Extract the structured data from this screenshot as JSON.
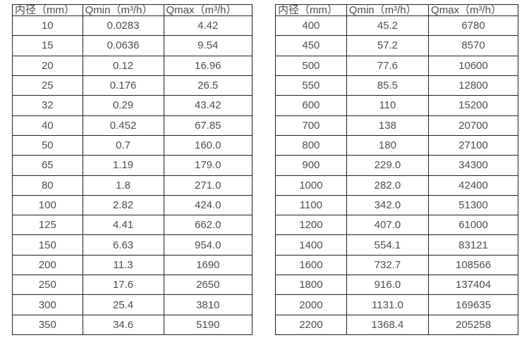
{
  "page": {
    "background_color": "#ffffff",
    "border_color": "#1f1f1f",
    "text_color": "#4d4d4d"
  },
  "columns": [
    "内径（mm）",
    "Qmin（m³/h）",
    "Qmax（m³/h）"
  ],
  "left_table": {
    "rows": [
      [
        "10",
        "0.0283",
        "4.42"
      ],
      [
        "15",
        "0.0636",
        "9.54"
      ],
      [
        "20",
        "0.12",
        "16.96"
      ],
      [
        "25",
        "0.176",
        "26.5"
      ],
      [
        "32",
        "0.29",
        "43.42"
      ],
      [
        "40",
        "0.452",
        "67.85"
      ],
      [
        "50",
        "0.7",
        "160.0"
      ],
      [
        "65",
        "1.19",
        "179.0"
      ],
      [
        "80",
        "1.8",
        "271.0"
      ],
      [
        "100",
        "2.82",
        "424.0"
      ],
      [
        "125",
        "4.41",
        "662.0"
      ],
      [
        "150",
        "6.63",
        "954.0"
      ],
      [
        "200",
        "11.3",
        "1690"
      ],
      [
        "250",
        "17.6",
        "2650"
      ],
      [
        "300",
        "25.4",
        "3810"
      ],
      [
        "350",
        "34.6",
        "5190"
      ]
    ]
  },
  "right_table": {
    "rows": [
      [
        "400",
        "45.2",
        "6780"
      ],
      [
        "450",
        "57.2",
        "8570"
      ],
      [
        "500",
        "77.6",
        "10600"
      ],
      [
        "550",
        "85.5",
        "12800"
      ],
      [
        "600",
        "110",
        "15200"
      ],
      [
        "700",
        "138",
        "20700"
      ],
      [
        "800",
        "180",
        "27100"
      ],
      [
        "900",
        "229.0",
        "34300"
      ],
      [
        "1000",
        "282.0",
        "42400"
      ],
      [
        "1100",
        "342.0",
        "51300"
      ],
      [
        "1200",
        "407.0",
        "61000"
      ],
      [
        "1400",
        "554.1",
        "83121"
      ],
      [
        "1600",
        "732.7",
        "108566"
      ],
      [
        "1800",
        "916.0",
        "137404"
      ],
      [
        "2000",
        "1131.0",
        "169635"
      ],
      [
        "2200",
        "1368.4",
        "205258"
      ]
    ]
  }
}
